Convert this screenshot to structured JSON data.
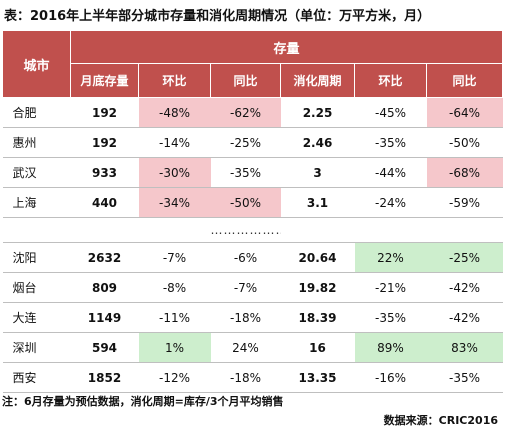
{
  "title": "表：2016年上半年部分城市存量和消化周期情况（单位：万平方米，月）",
  "header": {
    "city": "城市",
    "group": "存量",
    "columns": [
      "月底存量",
      "环比",
      "同比",
      "消化周期",
      "环比",
      "同比"
    ]
  },
  "rows_top": [
    {
      "city": "合肥",
      "stock": "192",
      "mom": "-48%",
      "yoy": "-62%",
      "cycle": "2.25",
      "cmom": "-45%",
      "cyoy": "-64%"
    },
    {
      "city": "惠州",
      "stock": "192",
      "mom": "-14%",
      "yoy": "-25%",
      "cycle": "2.46",
      "cmom": "-35%",
      "cyoy": "-50%"
    },
    {
      "city": "武汉",
      "stock": "933",
      "mom": "-30%",
      "yoy": "-35%",
      "cycle": "3",
      "cmom": "-44%",
      "cyoy": "-68%"
    },
    {
      "city": "上海",
      "stock": "440",
      "mom": "-34%",
      "yoy": "-50%",
      "cycle": "3.1",
      "cmom": "-24%",
      "cyoy": "-59%"
    }
  ],
  "separator": "………………",
  "rows_bottom": [
    {
      "city": "沈阳",
      "stock": "2632",
      "mom": "-7%",
      "yoy": "-6%",
      "cycle": "20.64",
      "cmom": "22%",
      "cyoy": "-25%"
    },
    {
      "city": "烟台",
      "stock": "809",
      "mom": "-8%",
      "yoy": "-7%",
      "cycle": "19.82",
      "cmom": "-21%",
      "cyoy": "-42%"
    },
    {
      "city": "大连",
      "stock": "1149",
      "mom": "-11%",
      "yoy": "-18%",
      "cycle": "18.39",
      "cmom": "-35%",
      "cyoy": "-42%"
    },
    {
      "city": "深圳",
      "stock": "594",
      "mom": "1%",
      "yoy": "24%",
      "cycle": "16",
      "cmom": "89%",
      "cyoy": "83%"
    },
    {
      "city": "西安",
      "stock": "1852",
      "mom": "-12%",
      "yoy": "-18%",
      "cycle": "13.35",
      "cmom": "-16%",
      "cyoy": "-35%"
    }
  ],
  "note": "注：6月存量为预估数据，消化周期=库存/3个月平均销售",
  "source": "数据来源：CRIC2016",
  "colors": {
    "header": "#c0504d",
    "pink": "#f5c7cb",
    "green": "#cdeecd"
  }
}
